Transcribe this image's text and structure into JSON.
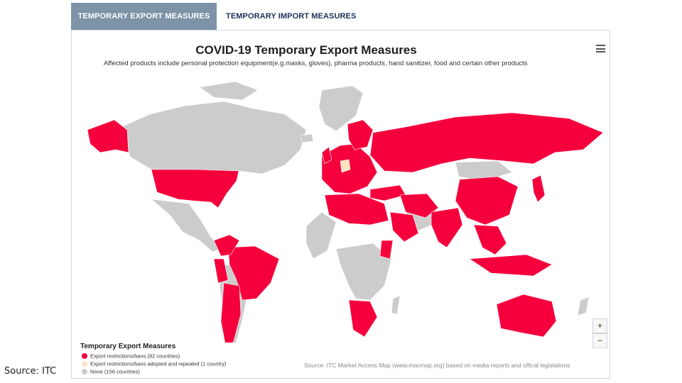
{
  "tabs": [
    {
      "label": "TEMPORARY EXPORT MEASURES",
      "active": true
    },
    {
      "label": "TEMPORARY IMPORT MEASURES",
      "active": false
    }
  ],
  "map": {
    "title": "COVID-19 Temporary Export Measures",
    "subtitle": "Affected products include personal protection equipment(e.g.masks, gloves), pharma products, hand sanitizer, food and certain other products",
    "menu_icon": "hamburger-menu-icon",
    "zoom_in_label": "+",
    "zoom_out_label": "−",
    "colors": {
      "restricted": "#f5003d",
      "repealed": "#fbe3c0",
      "none": "#cccccc",
      "ocean": "#ffffff"
    },
    "legend": {
      "title": "Temporary Export Measures",
      "items": [
        {
          "label": "Export restrictions/bans (82 countries)",
          "color": "#f5003d"
        },
        {
          "label": "Export restrictions/bans adopted and repealed (1 country)",
          "color": "#fbe3c0"
        },
        {
          "label": "None (156 countries)",
          "color": "#cccccc"
        }
      ]
    },
    "source_credit": "Source: ITC Market Access Map (www.macmap.org) based on media reports and offical legislations"
  },
  "slide": {
    "source_label": "Source: ITC"
  }
}
